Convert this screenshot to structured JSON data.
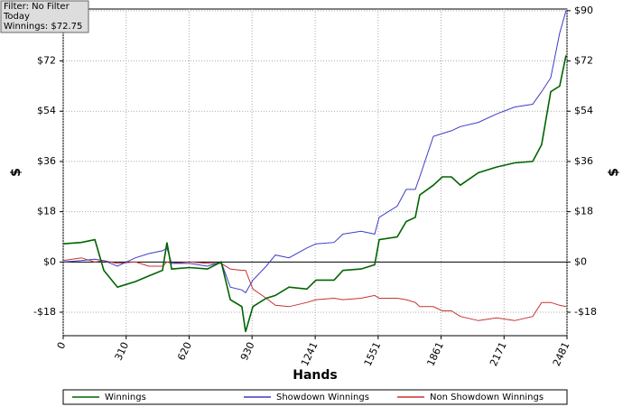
{
  "chart_data": {
    "type": "line",
    "info": [
      "Filter: No Filter",
      "Today",
      "Winnings: $72.75"
    ],
    "xlabel": "Hands",
    "ylabel": "$",
    "y2label": "$",
    "x": [
      0,
      89,
      156,
      200,
      267,
      356,
      422,
      489,
      511,
      534,
      622,
      711,
      778,
      823,
      880,
      898,
      934,
      1000,
      1045,
      1112,
      1200,
      1245,
      1334,
      1378,
      1467,
      1534,
      1556,
      1645,
      1689,
      1734,
      1756,
      1823,
      1867,
      1912,
      1956,
      2045,
      2134,
      2223,
      2312,
      2356,
      2401,
      2445,
      2476
    ],
    "series": [
      {
        "name": "Winnings",
        "color": "#006400",
        "values": [
          6.5,
          7,
          8,
          -3,
          -9,
          -7,
          -5,
          -3,
          7,
          -2.5,
          -2,
          -2.5,
          0,
          -13.5,
          -16,
          -25,
          -16,
          -13,
          -12,
          -9,
          -9.7,
          -6.5,
          -6.5,
          -3,
          -2.5,
          -1,
          8,
          9,
          14.5,
          16,
          24,
          27.5,
          30.5,
          30.5,
          27.5,
          32,
          34,
          35.5,
          36,
          42,
          61,
          63,
          74
        ]
      },
      {
        "name": "Showdown Winnings",
        "color": "#3c3cc8",
        "values": [
          0,
          0.5,
          1,
          0.5,
          -1.5,
          1.5,
          3,
          4,
          5,
          -0.5,
          -0.5,
          -1.5,
          0,
          -9,
          -10,
          -11,
          -6.5,
          -1.5,
          2.5,
          1.5,
          5,
          6.5,
          7,
          10,
          11,
          10,
          16,
          20,
          26,
          26,
          30.5,
          45,
          46,
          47,
          48.5,
          50,
          53,
          55.5,
          56.5,
          61,
          66,
          82,
          90
        ]
      },
      {
        "name": "Non Showdown Winnings",
        "color": "#c83232",
        "values": [
          0.5,
          1.5,
          0,
          0.5,
          -0.5,
          0,
          -1.5,
          -1.5,
          0,
          -0.5,
          0,
          -0.5,
          -0.5,
          -2.5,
          -3,
          -3,
          -9.7,
          -13,
          -15.5,
          -16,
          -14.5,
          -13.5,
          -13,
          -13.5,
          -13,
          -12,
          -13,
          -13,
          -13.5,
          -14.5,
          -16,
          -16,
          -17.5,
          -17.5,
          -19.5,
          -21,
          -20,
          -21,
          -19.5,
          -14.5,
          -14.5,
          -15.5,
          -16
        ]
      }
    ],
    "xlim": [
      0,
      2481
    ],
    "xticks": [
      0,
      310,
      620,
      930,
      1241,
      1551,
      1861,
      2171,
      2481
    ],
    "ylim": [
      -26.4,
      90.6
    ],
    "yticks": [
      {
        "value": -18,
        "label": "-$18"
      },
      {
        "value": 0,
        "label": "$0"
      },
      {
        "value": 18,
        "label": "$18"
      },
      {
        "value": 36,
        "label": "$36"
      },
      {
        "value": 54,
        "label": "$54"
      },
      {
        "value": 72,
        "label": "$72"
      },
      {
        "value": 90,
        "label": "$90"
      }
    ],
    "grid": true
  }
}
